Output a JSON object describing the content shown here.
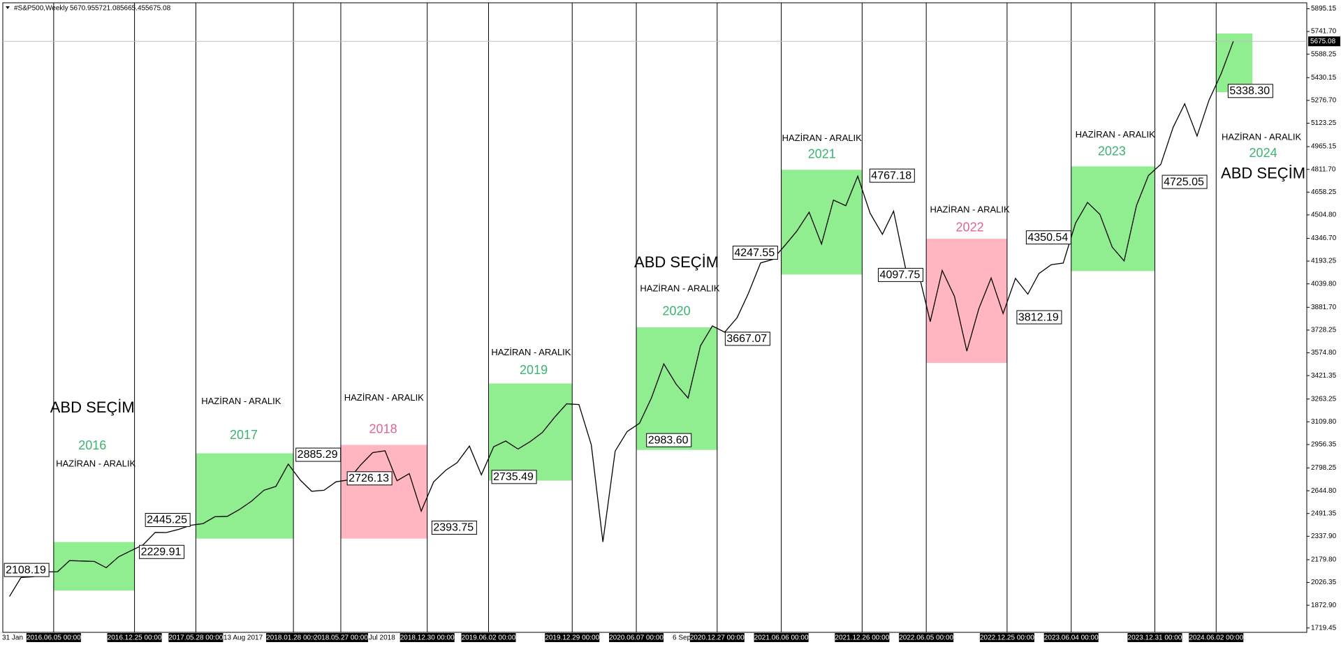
{
  "header": {
    "symbol": "#S&P500,Weekly",
    "ohlc": [
      5670.95,
      5721.08,
      5665.45,
      5675.08
    ]
  },
  "chart_data": {
    "type": "line",
    "color": "#000000",
    "x": [
      "2016-02",
      "2016-03",
      "2016-04",
      "2016-05",
      "2016-06",
      "2016-07",
      "2016-08",
      "2016-09",
      "2016-10",
      "2016-11",
      "2016-12",
      "2017-01",
      "2017-02",
      "2017-03",
      "2017-04",
      "2017-05",
      "2017-06",
      "2017-07",
      "2017-08",
      "2017-09",
      "2017-10",
      "2017-11",
      "2017-12",
      "2018-01",
      "2018-02",
      "2018-03",
      "2018-04",
      "2018-05",
      "2018-06",
      "2018-07",
      "2018-08",
      "2018-09",
      "2018-10",
      "2018-11",
      "2018-12",
      "2019-01",
      "2019-02",
      "2019-03",
      "2019-04",
      "2019-05",
      "2019-06",
      "2019-07",
      "2019-08",
      "2019-09",
      "2019-10",
      "2019-11",
      "2019-12",
      "2020-01",
      "2020-02",
      "2020-03",
      "2020-04",
      "2020-05",
      "2020-06",
      "2020-07",
      "2020-08",
      "2020-09",
      "2020-10",
      "2020-11",
      "2020-12",
      "2021-01",
      "2021-02",
      "2021-03",
      "2021-04",
      "2021-05",
      "2021-06",
      "2021-07",
      "2021-08",
      "2021-09",
      "2021-10",
      "2021-11",
      "2021-12",
      "2022-01",
      "2022-02",
      "2022-03",
      "2022-04",
      "2022-05",
      "2022-06",
      "2022-07",
      "2022-08",
      "2022-09",
      "2022-10",
      "2022-11",
      "2022-12",
      "2023-01",
      "2023-02",
      "2023-03",
      "2023-04",
      "2023-05",
      "2023-06",
      "2023-07",
      "2023-08",
      "2023-09",
      "2023-10",
      "2023-11",
      "2023-12",
      "2024-01",
      "2024-02",
      "2024-03",
      "2024-04",
      "2024-05",
      "2024-06",
      "2024-07"
    ],
    "values": [
      1932,
      2060,
      2065,
      2097,
      2099,
      2174,
      2171,
      2168,
      2126,
      2199,
      2239,
      2279,
      2364,
      2363,
      2384,
      2412,
      2423,
      2470,
      2472,
      2519,
      2575,
      2648,
      2674,
      2824,
      2714,
      2641,
      2648,
      2705,
      2718,
      2816,
      2902,
      2914,
      2712,
      2760,
      2507,
      2704,
      2784,
      2834,
      2946,
      2752,
      2942,
      2980,
      2926,
      2977,
      3038,
      3141,
      3231,
      3226,
      2954,
      2300,
      2912,
      3044,
      3100,
      3271,
      3500,
      3363,
      3270,
      3622,
      3756,
      3714,
      3811,
      3973,
      4181,
      4204,
      4298,
      4395,
      4523,
      4308,
      4605,
      4567,
      4766,
      4516,
      4374,
      4530,
      4132,
      4132,
      3785,
      4130,
      3955,
      3586,
      3872,
      4080,
      3840,
      4077,
      3970,
      4109,
      4169,
      4180,
      4450,
      4589,
      4508,
      4288,
      4194,
      4568,
      4770,
      4846,
      5096,
      5254,
      5036,
      5278,
      5460,
      5675.08
    ],
    "xlim": [
      "2016-01-31",
      "2025-01-05"
    ],
    "ylim": [
      1690,
      5935
    ],
    "yticks": [
      {
        "value": 5895.15,
        "label": "5895.15"
      },
      {
        "value": 5741.7,
        "label": "5741.70"
      },
      {
        "value": 5588.25,
        "label": "5588.25"
      },
      {
        "value": 5430.15,
        "label": "5430.15"
      },
      {
        "value": 5276.7,
        "label": "5276.70"
      },
      {
        "value": 5123.25,
        "label": "5123.25"
      },
      {
        "value": 4965.15,
        "label": "4965.15"
      },
      {
        "value": 4811.7,
        "label": "4811.70"
      },
      {
        "value": 4658.25,
        "label": "4658.25"
      },
      {
        "value": 4504.8,
        "label": "4504.80"
      },
      {
        "value": 4346.7,
        "label": "4346.70"
      },
      {
        "value": 4193.25,
        "label": "4193.25"
      },
      {
        "value": 4039.8,
        "label": "4039.80"
      },
      {
        "value": 3881.7,
        "label": "3881.70"
      },
      {
        "value": 3728.25,
        "label": "3728.25"
      },
      {
        "value": 3574.8,
        "label": "3574.80"
      },
      {
        "value": 3421.35,
        "label": "3421.35"
      },
      {
        "value": 3263.25,
        "label": "3263.25"
      },
      {
        "value": 3109.8,
        "label": "3109.80"
      },
      {
        "value": 2956.35,
        "label": "2956.35"
      },
      {
        "value": 2798.25,
        "label": "2798.25"
      },
      {
        "value": 2644.8,
        "label": "2644.80"
      },
      {
        "value": 2491.35,
        "label": "2491.35"
      },
      {
        "value": 2337.9,
        "label": "2337.90"
      },
      {
        "value": 2179.8,
        "label": "2179.80"
      },
      {
        "value": 2026.35,
        "label": "2026.35"
      },
      {
        "value": 1872.9,
        "label": "1872.90"
      },
      {
        "value": 1719.45,
        "label": "1719.45"
      }
    ],
    "current_price": 5675.08,
    "separators": [
      "2016.06.05 00:00",
      "2016.12.25 00:00",
      "2017.05.28 00:00",
      "2018.01.28 00:00",
      "2018.05.27 00:00",
      "2018.12.30 00:00",
      "2019.06.02 00:00",
      "2019.12.29 00:00",
      "2020.06.07 00:00",
      "2020.12.27 00:00",
      "2021.06.06 00:00",
      "2021.12.26 00:00",
      "2022.06.05 00:00",
      "2022.12.25 00:00",
      "2023.06.04 00:00",
      "2023.12.31 00:00",
      "2024.06.02 00:00"
    ],
    "x_labels": [
      "31 Jan",
      "13 Aug 2017",
      "Jul 2018",
      "6 Sep"
    ],
    "boxes": [
      {
        "start": "2016-06-05",
        "end": "2016-12-25",
        "high": 2299,
        "low": 1972,
        "color": "#90ee90",
        "year": "2016",
        "year_color": "#3cb371",
        "period": "HAZİRAN - ARALIK",
        "election": "ABD SEÇİM"
      },
      {
        "start": "2017-05-28",
        "end": "2018-01-28",
        "high": 2897,
        "low": 2322,
        "color": "#90ee90",
        "year": "2017",
        "year_color": "#3cb371",
        "period": "HAZİRAN - ARALIK"
      },
      {
        "start": "2018-05-27",
        "end": "2018-12-30",
        "high": 2954,
        "low": 2322,
        "color": "#ffb6c1",
        "year": "2018",
        "year_color": "#e0668a",
        "period": "HAZİRAN - ARALIK"
      },
      {
        "start": "2019-06-02",
        "end": "2019-12-29",
        "high": 3368,
        "low": 2713,
        "color": "#90ee90",
        "year": "2019",
        "year_color": "#3cb371",
        "period": "HAZİRAN - ARALIK"
      },
      {
        "start": "2020-06-07",
        "end": "2020-12-27",
        "high": 3747,
        "low": 2920,
        "color": "#90ee90",
        "year": "2020",
        "year_color": "#3cb371",
        "period": "HAZİRAN - ARALIK",
        "election": "ABD SEÇİM"
      },
      {
        "start": "2021-06-06",
        "end": "2021-12-26",
        "high": 4809,
        "low": 4103,
        "color": "#90ee90",
        "year": "2021",
        "year_color": "#3cb371",
        "period": "HAZİRAN - ARALIK"
      },
      {
        "start": "2022-06-05",
        "end": "2022-12-25",
        "high": 4344,
        "low": 3506,
        "color": "#ffb6c1",
        "year": "2022",
        "year_color": "#e0668a",
        "period": "HAZİRAN - ARALIK"
      },
      {
        "start": "2023-06-04",
        "end": "2023-12-31",
        "high": 4832,
        "low": 4126,
        "color": "#90ee90",
        "year": "2023",
        "year_color": "#3cb371",
        "period": "HAZİRAN - ARALIK"
      },
      {
        "start": "2024-06-02",
        "end": "2024-09-01",
        "high": 5728,
        "low": 5332,
        "color": "#90ee90",
        "year": "2024",
        "year_color": "#3cb371",
        "period": "HAZİRAN - ARALIK",
        "election": "ABD SEÇİM"
      }
    ],
    "price_labels": {
      "values": [
        2108.19,
        2445.25,
        2229.91,
        2885.29,
        2726.13,
        2393.75,
        2735.49,
        2983.6,
        3667.07,
        4247.55,
        4767.18,
        4097.75,
        4350.54,
        3812.19,
        4725.05,
        5338.3
      ],
      "value_labels": [
        "2108.19",
        "2445.25",
        "2229.91",
        "2885.29",
        "2726.13",
        "2393.75",
        "2735.49",
        "2983.60",
        "3667.07",
        "4247.55",
        "4767.18",
        "4097.75",
        "4350.54",
        "3812.19",
        "4725.05",
        "5338.30"
      ]
    }
  }
}
